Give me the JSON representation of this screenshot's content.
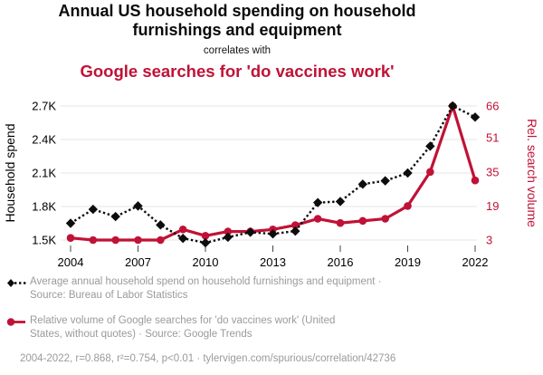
{
  "header": {
    "title": "Annual US household spending on household furnishings and equipment",
    "connector": "correlates with",
    "subtitle": "Google searches for 'do vaccines work'"
  },
  "colors": {
    "accent_red": "#c01236",
    "series_black": "#0d0d0d",
    "muted_text": "#9a9a9a",
    "gridline": "#ebebeb",
    "tick_mark": "#444444"
  },
  "chart_data": {
    "type": "line",
    "x": [
      2004,
      2005,
      2006,
      2007,
      2008,
      2009,
      2010,
      2011,
      2012,
      2013,
      2014,
      2015,
      2016,
      2017,
      2018,
      2019,
      2020,
      2021,
      2022
    ],
    "x_ticks": [
      2004,
      2007,
      2010,
      2013,
      2016,
      2019,
      2022
    ],
    "grid": "horizontal",
    "legend_position": "below",
    "left_axis": {
      "label": "Household spend",
      "ticks": [
        "1.5K",
        "1.8K",
        "2.1K",
        "2.4K",
        "2.7K"
      ],
      "tick_values": [
        1500,
        1800,
        2100,
        2400,
        2700
      ],
      "range": [
        1500,
        2700
      ]
    },
    "right_axis": {
      "label": "Rel. search volume",
      "ticks": [
        3,
        19,
        35,
        51,
        66
      ],
      "tick_values": [
        3,
        19,
        35,
        51,
        66
      ],
      "range": [
        3,
        66
      ]
    },
    "series": [
      {
        "name": "Average annual household spend on household furnishings and equipment",
        "axis": "left",
        "style": "dotted-diamond",
        "color": "#0d0d0d",
        "values": [
          1650,
          1775,
          1710,
          1805,
          1635,
          1515,
          1475,
          1525,
          1570,
          1555,
          1580,
          1835,
          1845,
          2000,
          2030,
          2100,
          2340,
          2700,
          2600
        ]
      },
      {
        "name": "Relative volume of Google searches for 'do vaccines work'",
        "axis": "right",
        "style": "solid-circle",
        "color": "#c01236",
        "values": [
          4,
          3,
          3,
          3,
          3,
          8,
          5,
          7,
          7,
          8,
          10,
          13,
          11,
          12,
          13,
          19,
          35,
          66,
          31
        ]
      }
    ]
  },
  "legend": {
    "items": [
      {
        "label": "Average annual household spend on household furnishings and equipment · Source: Bureau of Labor Statistics",
        "lines": [
          "Average annual household spend on household furnishings and equipment ·",
          "Source: Bureau of Labor Statistics"
        ],
        "marker": "black-diamond-dotted"
      },
      {
        "label": "Relative volume of Google searches for 'do vaccines work' (United States, without quotes) · Source: Google Trends",
        "lines": [
          "Relative volume of Google searches for 'do vaccines work' (United",
          "States, without quotes) · Source: Google Trends"
        ],
        "marker": "red-circle-line"
      }
    ]
  },
  "footer": {
    "text": "2004-2022, r=0.868, r²=0.754, p<0.01 · tylervigen.com/spurious/correlation/42736"
  }
}
